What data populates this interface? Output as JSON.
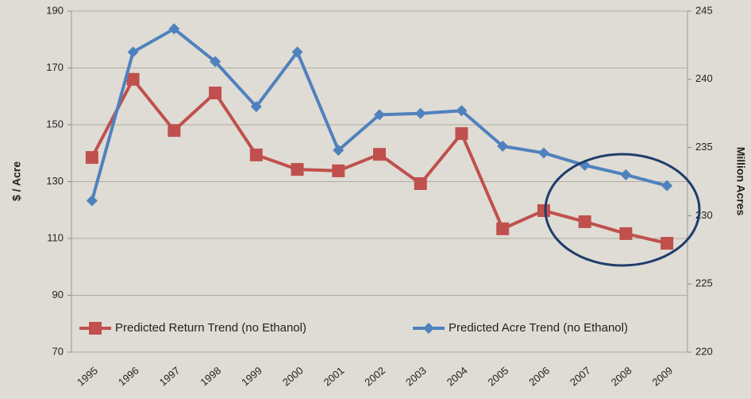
{
  "chart_data": {
    "type": "line",
    "y_label": "$ / Acre",
    "y2_label": "Million Acres",
    "categories": [
      "1995",
      "1996",
      "1997",
      "1998",
      "1999",
      "2000",
      "2001",
      "2002",
      "2003",
      "2004",
      "2005",
      "2006",
      "2007",
      "2008",
      "2009"
    ],
    "series": [
      {
        "name": "Predicted Return Trend (no Ethanol)",
        "color": "#c0504d",
        "marker": "square",
        "values": [
          138.5,
          166,
          148,
          161.2,
          139.4,
          134.3,
          133.8,
          139.6,
          129.3,
          146.9,
          113.4,
          119.8,
          115.9,
          111.7,
          108.3
        ]
      },
      {
        "name": "Predicted Acre Trend (no Ethanol)",
        "color": "#4f81bd",
        "marker": "diamond",
        "axis": "y2",
        "values": [
          231.1,
          242.0,
          243.7,
          241.3,
          238.0,
          242.0,
          234.8,
          237.4,
          237.5,
          237.7,
          235.1,
          234.6,
          233.7,
          233.0,
          232.2
        ]
      }
    ],
    "ylim": [
      70,
      190
    ],
    "yticks": [
      70,
      90,
      110,
      130,
      150,
      170,
      190
    ],
    "y2lim": [
      220,
      245
    ],
    "y2ticks": [
      220,
      225,
      230,
      235,
      240,
      245
    ],
    "grid": true,
    "legend": "bottom"
  }
}
